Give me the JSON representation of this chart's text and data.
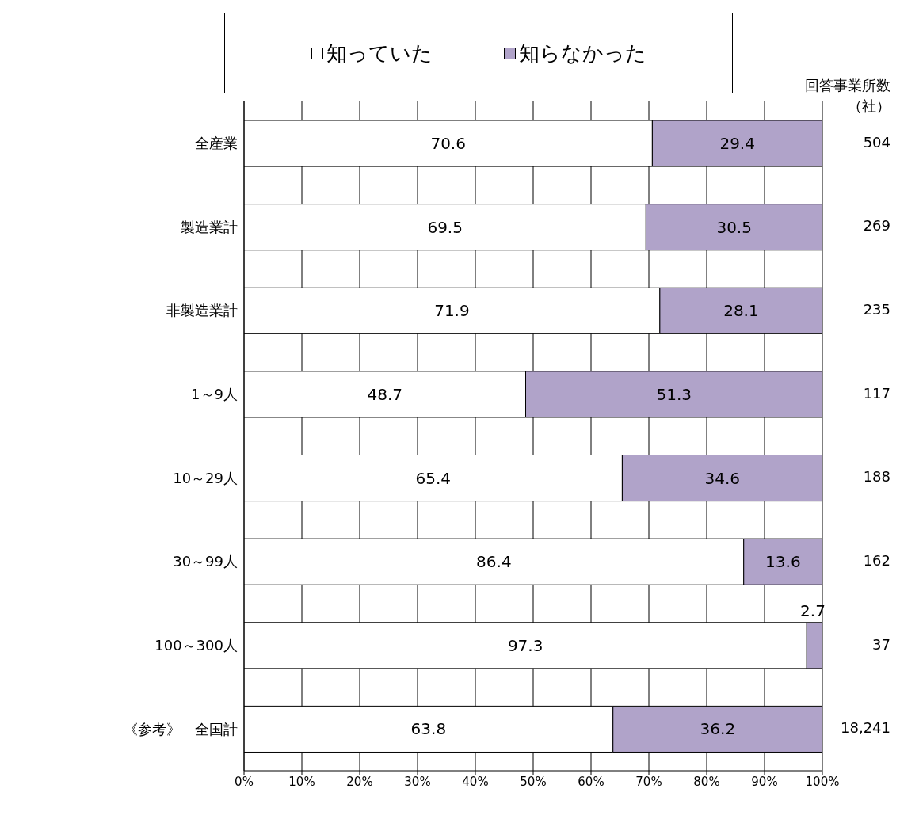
{
  "chart_data": {
    "type": "bar",
    "orientation": "horizontal",
    "stacked": true,
    "categories": [
      "全産業",
      "製造業計",
      "非製造業計",
      "1～9人",
      "10～29人",
      "30～99人",
      "100～300人",
      "《参考》　全国計"
    ],
    "series": [
      {
        "name": "知っていた",
        "color": "#ffffff",
        "values": [
          70.6,
          69.5,
          71.9,
          48.7,
          65.4,
          86.4,
          97.3,
          63.8
        ]
      },
      {
        "name": "知らなかった",
        "color": "#b0a3c9",
        "values": [
          29.4,
          30.5,
          28.1,
          51.3,
          34.6,
          13.6,
          2.7,
          36.2
        ]
      }
    ],
    "xlim": [
      0,
      100
    ],
    "xticks": [
      {
        "value": 0,
        "label": "0%"
      },
      {
        "value": 10,
        "label": "10%"
      },
      {
        "value": 20,
        "label": "20%"
      },
      {
        "value": 30,
        "label": "30%"
      },
      {
        "value": 40,
        "label": "40%"
      },
      {
        "value": 50,
        "label": "50%"
      },
      {
        "value": 60,
        "label": "60%"
      },
      {
        "value": 70,
        "label": "70%"
      },
      {
        "value": 80,
        "label": "80%"
      },
      {
        "value": 90,
        "label": "90%"
      },
      {
        "value": 100,
        "label": "100%"
      }
    ],
    "grid": "x",
    "legend": "top",
    "data_labels": true,
    "annotations": [
      "回答事業所数",
      "（社）",
      "504",
      "269",
      "235",
      "117",
      "188",
      "162",
      "37",
      "18,241"
    ]
  }
}
